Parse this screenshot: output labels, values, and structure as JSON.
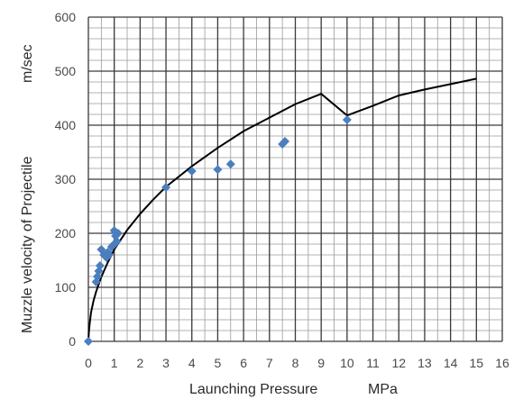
{
  "chart_data": {
    "type": "scatter",
    "xlabel": "Launching Pressure",
    "xunit": "MPa",
    "ylabel": "Muzzle velocity of Projectile",
    "yunit": "m/sec",
    "xlim": [
      0,
      16
    ],
    "ylim": [
      0,
      600
    ],
    "x_ticks": [
      "0",
      "1",
      "2",
      "3",
      "4",
      "5",
      "6",
      "7",
      "8",
      "9",
      "10",
      "11",
      "12",
      "13",
      "14",
      "15",
      "16"
    ],
    "y_ticks": [
      "0",
      "100",
      "200",
      "300",
      "400",
      "500",
      "600"
    ],
    "grid": {
      "major": true,
      "minor_x": 0.5,
      "minor_y": 20
    },
    "marker_color": "#4a7ebf",
    "curve_color": "#000000",
    "points": [
      {
        "x": 0.0,
        "y": 0
      },
      {
        "x": 0.3,
        "y": 110
      },
      {
        "x": 0.35,
        "y": 120
      },
      {
        "x": 0.4,
        "y": 130
      },
      {
        "x": 0.45,
        "y": 140
      },
      {
        "x": 0.5,
        "y": 170
      },
      {
        "x": 0.6,
        "y": 160
      },
      {
        "x": 0.7,
        "y": 155
      },
      {
        "x": 0.75,
        "y": 165
      },
      {
        "x": 0.8,
        "y": 160
      },
      {
        "x": 0.9,
        "y": 175
      },
      {
        "x": 1.0,
        "y": 180
      },
      {
        "x": 1.0,
        "y": 205
      },
      {
        "x": 1.05,
        "y": 195
      },
      {
        "x": 1.1,
        "y": 185
      },
      {
        "x": 1.15,
        "y": 200
      },
      {
        "x": 3.0,
        "y": 285
      },
      {
        "x": 4.0,
        "y": 315
      },
      {
        "x": 5.0,
        "y": 318
      },
      {
        "x": 5.5,
        "y": 328
      },
      {
        "x": 7.5,
        "y": 365
      },
      {
        "x": 7.6,
        "y": 370
      },
      {
        "x": 10.0,
        "y": 410
      }
    ],
    "fit_curve": {
      "x": [
        0,
        0.02,
        0.05,
        0.1,
        0.2,
        0.3,
        0.5,
        0.75,
        1,
        1.5,
        2,
        2.5,
        3,
        4,
        5,
        6,
        7,
        8,
        9,
        10,
        11,
        12,
        13,
        14,
        15
      ],
      "y": [
        0,
        18,
        32,
        53,
        75,
        92,
        119,
        146,
        170,
        206,
        236,
        262,
        286,
        324,
        358,
        389,
        414,
        439,
        458,
        418,
        436,
        455,
        466,
        476,
        486
      ]
    }
  }
}
